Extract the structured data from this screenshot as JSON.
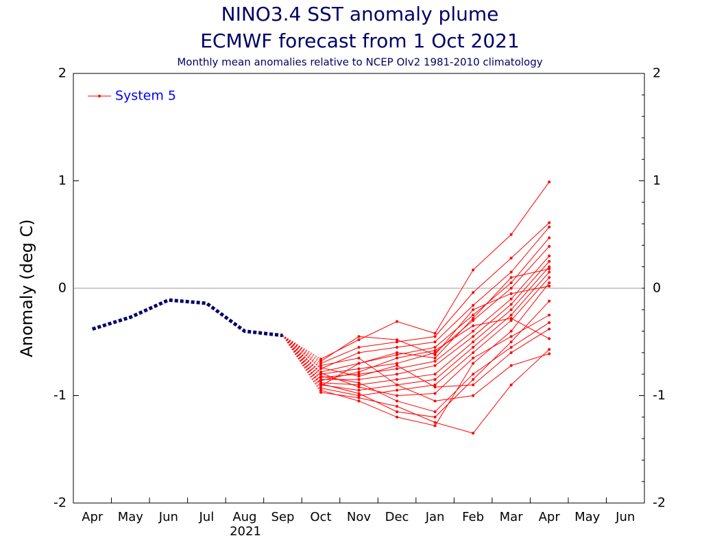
{
  "chart_data": {
    "type": "plume",
    "title": "NINO3.4 SST anomaly plume",
    "subtitle": "ECMWF forecast from 1 Oct 2021",
    "note": "Monthly mean anomalies relative to NCEP OIv2 1981-2010 climatology",
    "y_label": "Anomaly (deg C)",
    "year_label": "2021",
    "categories": [
      "Apr",
      "May",
      "Jun",
      "Jul",
      "Aug",
      "Sep",
      "Oct",
      "Nov",
      "Dec",
      "Jan",
      "Feb",
      "Mar",
      "Apr",
      "May",
      "Jun"
    ],
    "ylim": [
      -2,
      2
    ],
    "yticks": [
      -2,
      -1,
      0,
      1,
      2
    ],
    "observed": {
      "color": "#000066",
      "values": [
        -0.38,
        -0.27,
        -0.11,
        -0.14,
        -0.4,
        -0.44,
        null,
        null,
        null,
        null,
        null,
        null,
        null,
        null,
        null
      ]
    },
    "forecast": {
      "name": "System 5",
      "color": "#ff0000",
      "members": [
        [
          null,
          null,
          null,
          null,
          null,
          null,
          -0.66,
          -0.48,
          -0.31,
          -0.42,
          0.17,
          0.5,
          0.99,
          null,
          null
        ],
        [
          null,
          null,
          null,
          null,
          null,
          null,
          -0.7,
          -0.55,
          -0.5,
          -0.45,
          -0.04,
          0.28,
          0.61,
          null,
          null
        ],
        [
          null,
          null,
          null,
          null,
          null,
          null,
          -0.75,
          -0.6,
          -0.55,
          -0.5,
          -0.16,
          0.15,
          0.57,
          null,
          null
        ],
        [
          null,
          null,
          null,
          null,
          null,
          null,
          -0.78,
          -0.7,
          -0.62,
          -0.55,
          -0.25,
          0.05,
          0.47,
          null,
          null
        ],
        [
          null,
          null,
          null,
          null,
          null,
          null,
          -0.8,
          -0.75,
          -0.7,
          -0.6,
          -0.3,
          0.0,
          0.39,
          null,
          null
        ],
        [
          null,
          null,
          null,
          null,
          null,
          null,
          -0.83,
          -0.8,
          -0.75,
          -0.68,
          -0.4,
          -0.1,
          0.3,
          null,
          null
        ],
        [
          null,
          null,
          null,
          null,
          null,
          null,
          -0.85,
          -0.85,
          -0.8,
          -0.72,
          -0.45,
          -0.15,
          0.25,
          null,
          null
        ],
        [
          null,
          null,
          null,
          null,
          null,
          null,
          -0.88,
          -0.9,
          -0.85,
          -0.8,
          -0.5,
          -0.2,
          0.2,
          null,
          null
        ],
        [
          null,
          null,
          null,
          null,
          null,
          null,
          -0.9,
          -0.95,
          -0.9,
          -0.85,
          -0.55,
          -0.25,
          0.15,
          null,
          null
        ],
        [
          null,
          null,
          null,
          null,
          null,
          null,
          -0.93,
          -1.0,
          -0.95,
          -0.9,
          -0.6,
          -0.3,
          0.1,
          null,
          null
        ],
        [
          null,
          null,
          null,
          null,
          null,
          null,
          -0.95,
          -1.05,
          -1.2,
          -1.28,
          -0.7,
          -0.4,
          0.05,
          null,
          null
        ],
        [
          null,
          null,
          null,
          null,
          null,
          null,
          -0.97,
          -1.02,
          -1.1,
          -1.25,
          -1.35,
          -0.9,
          -0.57,
          null,
          null
        ],
        [
          null,
          null,
          null,
          null,
          null,
          null,
          -0.72,
          -0.65,
          -0.9,
          -1.05,
          -1.0,
          -0.72,
          -0.61,
          null,
          null
        ],
        [
          null,
          null,
          null,
          null,
          null,
          null,
          -0.68,
          -0.45,
          -0.48,
          -0.62,
          -0.2,
          -0.05,
          0.02,
          null,
          null
        ],
        [
          null,
          null,
          null,
          null,
          null,
          null,
          -0.82,
          -0.88,
          -1.05,
          -1.15,
          -0.8,
          -0.55,
          -0.32,
          null,
          null
        ],
        [
          null,
          null,
          null,
          null,
          null,
          null,
          -0.86,
          -0.78,
          -0.65,
          -0.58,
          -0.35,
          -0.28,
          -0.47,
          null,
          null
        ],
        [
          null,
          null,
          null,
          null,
          null,
          null,
          -0.91,
          -0.7,
          -0.6,
          -0.65,
          -0.28,
          0.1,
          0.18,
          null,
          null
        ],
        [
          null,
          null,
          null,
          null,
          null,
          null,
          -0.79,
          -0.92,
          -1.0,
          -0.98,
          -0.65,
          -0.45,
          -0.25,
          null,
          null
        ],
        [
          null,
          null,
          null,
          null,
          null,
          null,
          -0.74,
          -0.82,
          -0.72,
          -0.92,
          -0.9,
          -0.6,
          -0.38,
          null,
          null
        ],
        [
          null,
          null,
          null,
          null,
          null,
          null,
          -0.89,
          -0.98,
          -1.15,
          -1.2,
          -0.85,
          -0.5,
          -0.12,
          null,
          null
        ]
      ]
    }
  }
}
